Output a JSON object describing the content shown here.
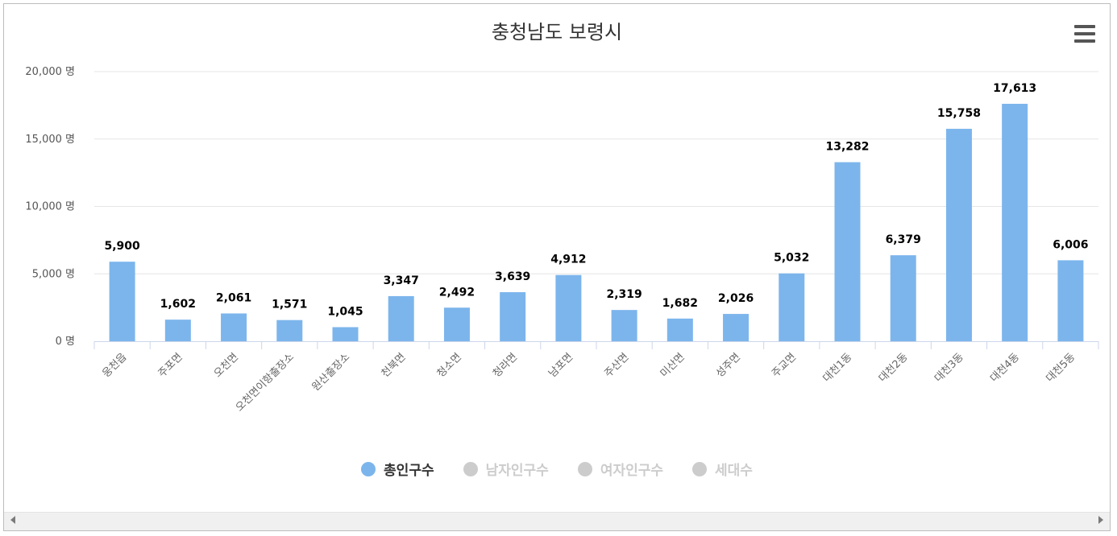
{
  "chart_data": {
    "type": "bar",
    "title": "충청남도 보령시",
    "categories": [
      "웅천읍",
      "주포면",
      "오천면",
      "오천면이항출장소",
      "원산출장소",
      "천북면",
      "청소면",
      "청라면",
      "남포면",
      "주산면",
      "미산면",
      "성주면",
      "주교면",
      "대천1동",
      "대천2동",
      "대천3동",
      "대천4동",
      "대천5동"
    ],
    "series": [
      {
        "name": "총인구수",
        "values": [
          5900,
          1602,
          2061,
          1571,
          1045,
          3347,
          2492,
          3639,
          4912,
          2319,
          1682,
          2026,
          5032,
          13282,
          6379,
          15758,
          17613,
          6006
        ],
        "color": "#7cb5ec",
        "visible": true
      },
      {
        "name": "남자인구수",
        "visible": false
      },
      {
        "name": "여자인구수",
        "visible": false
      },
      {
        "name": "세대수",
        "visible": false
      }
    ],
    "ylim": [
      0,
      20000
    ],
    "yticks": [
      0,
      5000,
      10000,
      15000,
      20000
    ],
    "ytick_labels": [
      "0 명",
      "5,000 명",
      "10,000 명",
      "15,000 명",
      "20,000 명"
    ],
    "data_labels": [
      "5,900",
      "1,602",
      "2,061",
      "1,571",
      "1,045",
      "3,347",
      "2,492",
      "3,639",
      "4,912",
      "2,319",
      "1,682",
      "2,026",
      "5,032",
      "13,282",
      "6,379",
      "15,758",
      "17,613",
      "6,006"
    ],
    "grid": true,
    "legend_position": "bottom-center"
  },
  "legend": {
    "items": [
      {
        "label": "총인구수",
        "color": "#7cb5ec",
        "active": true
      },
      {
        "label": "남자인구수",
        "color": "#cccccc",
        "active": false
      },
      {
        "label": "여자인구수",
        "color": "#cccccc",
        "active": false
      },
      {
        "label": "세대수",
        "color": "#cccccc",
        "active": false
      }
    ]
  },
  "icons": {
    "menu": "hamburger-menu-icon",
    "scroll_left": "arrow-left-icon",
    "scroll_right": "arrow-right-icon"
  }
}
